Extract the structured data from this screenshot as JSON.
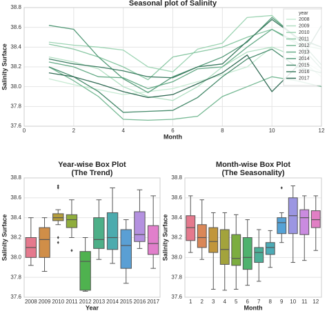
{
  "chart_data": [
    {
      "type": "line",
      "title": "Seasonal plot of Salinity",
      "xlabel": "Month",
      "ylabel": "Salinity Surface",
      "xlim": [
        0,
        12
      ],
      "xticks": [
        0,
        2,
        4,
        6,
        8,
        10,
        12
      ],
      "ylim": [
        37.6,
        38.8
      ],
      "yticks": [
        37.6,
        37.8,
        {
          "value": 38,
          "label": "38.0"
        },
        38.2,
        38.4,
        38.6,
        38.8
      ],
      "grid": true,
      "legend_title": "year",
      "legend": "upper right",
      "x": [
        1,
        2,
        3,
        4,
        5,
        6,
        7,
        8,
        9,
        10,
        11,
        12
      ],
      "series": [
        {
          "name": "2008",
          "color": "#c6ead2",
          "values": [
            38.08,
            38.02,
            37.97,
            37.92,
            37.95,
            37.98,
            38.05,
            38.12,
            38.2,
            38.4,
            38.3,
            38.15
          ]
        },
        {
          "name": "2009",
          "color": "#b1dfc2",
          "values": [
            38.3,
            38.25,
            38.18,
            38.0,
            37.9,
            37.86,
            38.0,
            38.2,
            38.35,
            38.4,
            38.3,
            38.1
          ]
        },
        {
          "name": "2010",
          "color": "#9dd4b3",
          "values": [
            38.45,
            38.42,
            38.4,
            38.37,
            38.2,
            38.15,
            38.38,
            38.44,
            38.7,
            38.72,
            38.48,
            38.4
          ]
        },
        {
          "name": "2011",
          "color": "#89c7a3",
          "values": [
            38.43,
            38.38,
            38.3,
            38.2,
            38.07,
            38.3,
            38.35,
            38.4,
            38.5,
            38.58,
            38.43,
            38.38
          ]
        },
        {
          "name": "2012",
          "color": "#76b994",
          "values": [
            38.2,
            38.06,
            37.9,
            37.67,
            37.66,
            37.67,
            37.7,
            37.9,
            38.0,
            38.1,
            38.06,
            38.0
          ]
        },
        {
          "name": "2013",
          "color": "#64aa86",
          "values": [
            38.25,
            38.2,
            38.1,
            38.09,
            37.98,
            38.05,
            38.18,
            38.2,
            38.4,
            38.58,
            38.45,
            38.18
          ]
        },
        {
          "name": "2014",
          "color": "#549a78",
          "values": [
            38.62,
            38.58,
            38.3,
            38.08,
            37.94,
            38.1,
            38.2,
            38.3,
            38.45,
            38.7,
            38.5,
            38.22
          ]
        },
        {
          "name": "2015",
          "color": "#468a6b",
          "values": [
            38.2,
            38.1,
            37.95,
            37.74,
            37.75,
            37.76,
            37.89,
            38.1,
            38.28,
            38.38,
            38.2,
            38.14
          ]
        },
        {
          "name": "2016",
          "color": "#3a7a5f",
          "values": [
            38.28,
            38.23,
            38.2,
            38.16,
            38.1,
            38.09,
            38.2,
            38.23,
            38.46,
            38.68,
            38.5,
            38.4
          ]
        },
        {
          "name": "2017",
          "color": "#2f6a53",
          "values": [
            38.14,
            38.1,
            38.03,
            37.95,
            37.89,
            37.92,
            38.03,
            38.14,
            38.32,
            37.95,
            38.2,
            38.62
          ]
        }
      ]
    },
    {
      "type": "box",
      "title": "Year-wise Box Plot",
      "subtitle": "(The Trend)",
      "xlabel": "Year",
      "ylabel": "Salinity Surface",
      "ylim": [
        37.6,
        38.8
      ],
      "yticks": [
        37.6,
        37.8,
        {
          "value": 38,
          "label": "38.0"
        },
        38.2,
        38.4,
        38.6,
        38.8
      ],
      "grid": true,
      "categories": [
        "2008",
        "2009",
        "2010",
        "2011",
        "2012",
        "2013",
        "2014",
        "2015",
        "2016",
        "2017"
      ],
      "colors": [
        "#e5798d",
        "#d08e48",
        "#b59e3c",
        "#8fad3d",
        "#4fb24f",
        "#4daf88",
        "#4cabae",
        "#5a9fd4",
        "#b491e0",
        "#e17fcb"
      ],
      "boxes": [
        {
          "whislo": 37.92,
          "q1": 38.0,
          "med": 38.1,
          "q3": 38.2,
          "whishi": 38.4,
          "fliers": []
        },
        {
          "whislo": 37.86,
          "q1": 38.0,
          "med": 38.18,
          "q3": 38.3,
          "whishi": 38.4,
          "fliers": []
        },
        {
          "whislo": 38.33,
          "q1": 38.37,
          "med": 38.4,
          "q3": 38.44,
          "whishi": 38.48,
          "fliers": [
            38.7,
            38.72,
            38.2,
            38.15
          ]
        },
        {
          "whislo": 38.2,
          "q1": 38.3,
          "med": 38.38,
          "q3": 38.43,
          "whishi": 38.58,
          "fliers": [
            38.07
          ]
        },
        {
          "whislo": 37.66,
          "q1": 37.67,
          "med": 37.96,
          "q3": 38.06,
          "whishi": 38.2,
          "fliers": []
        },
        {
          "whislo": 37.98,
          "q1": 38.09,
          "med": 38.18,
          "q3": 38.4,
          "whishi": 38.58,
          "fliers": []
        },
        {
          "whislo": 37.94,
          "q1": 38.08,
          "med": 38.2,
          "q3": 38.45,
          "whishi": 38.7,
          "fliers": []
        },
        {
          "whislo": 37.74,
          "q1": 37.89,
          "med": 38.12,
          "q3": 38.28,
          "whishi": 38.38,
          "fliers": []
        },
        {
          "whislo": 38.09,
          "q1": 38.16,
          "med": 38.23,
          "q3": 38.46,
          "whishi": 38.68,
          "fliers": []
        },
        {
          "whislo": 37.89,
          "q1": 38.03,
          "med": 38.14,
          "q3": 38.32,
          "whishi": 38.62,
          "fliers": []
        }
      ]
    },
    {
      "type": "box",
      "title": "Month-wise Box Plot",
      "subtitle": "(The Seasonality)",
      "xlabel": "Month",
      "ylabel": "Salinity Surface",
      "ylim": [
        37.6,
        38.8
      ],
      "yticks": [
        37.6,
        37.8,
        {
          "value": 38,
          "label": "38.0"
        },
        38.2,
        38.4,
        38.6,
        38.8
      ],
      "grid": true,
      "categories": [
        "1",
        "2",
        "3",
        "4",
        "5",
        "6",
        "7",
        "8",
        "9",
        "10",
        "11",
        "12"
      ],
      "colors": [
        "#e5798d",
        "#da8758",
        "#c1963c",
        "#a3a33c",
        "#7cad3f",
        "#4fb26e",
        "#4daf98",
        "#4dabb6",
        "#55a2d6",
        "#9b96e2",
        "#ca8be0",
        "#e17fc4"
      ],
      "boxes": [
        {
          "whislo": 38.05,
          "q1": 38.17,
          "med": 38.3,
          "q3": 38.42,
          "whishi": 38.62,
          "fliers": []
        },
        {
          "whislo": 37.98,
          "q1": 38.1,
          "med": 38.2,
          "q3": 38.33,
          "whishi": 38.58,
          "fliers": []
        },
        {
          "whislo": 37.68,
          "q1": 38.05,
          "med": 38.16,
          "q3": 38.3,
          "whishi": 38.45,
          "fliers": []
        },
        {
          "whislo": 37.67,
          "q1": 37.93,
          "med": 38.08,
          "q3": 38.28,
          "whishi": 38.45,
          "fliers": []
        },
        {
          "whislo": 37.68,
          "q1": 37.92,
          "med": 37.99,
          "q3": 38.23,
          "whishi": 38.43,
          "fliers": []
        },
        {
          "whislo": 37.72,
          "q1": 37.88,
          "med": 38.0,
          "q3": 38.2,
          "whishi": 38.38,
          "fliers": []
        },
        {
          "whislo": 37.76,
          "q1": 37.95,
          "med": 38.05,
          "q3": 38.1,
          "whishi": 38.28,
          "fliers": []
        },
        {
          "whislo": 37.9,
          "q1": 38.03,
          "med": 38.1,
          "q3": 38.15,
          "whishi": 38.27,
          "fliers": []
        },
        {
          "whislo": 38.15,
          "q1": 38.24,
          "med": 38.35,
          "q3": 38.4,
          "whishi": 38.45,
          "fliers": [
            38.7
          ]
        },
        {
          "whislo": 37.95,
          "q1": 38.24,
          "med": 38.42,
          "q3": 38.6,
          "whishi": 38.72,
          "fliers": []
        },
        {
          "whislo": 37.97,
          "q1": 38.23,
          "med": 38.4,
          "q3": 38.48,
          "whishi": 38.62,
          "fliers": []
        },
        {
          "whislo": 38.07,
          "q1": 38.3,
          "med": 38.38,
          "q3": 38.47,
          "whishi": 38.62,
          "fliers": []
        }
      ]
    }
  ]
}
